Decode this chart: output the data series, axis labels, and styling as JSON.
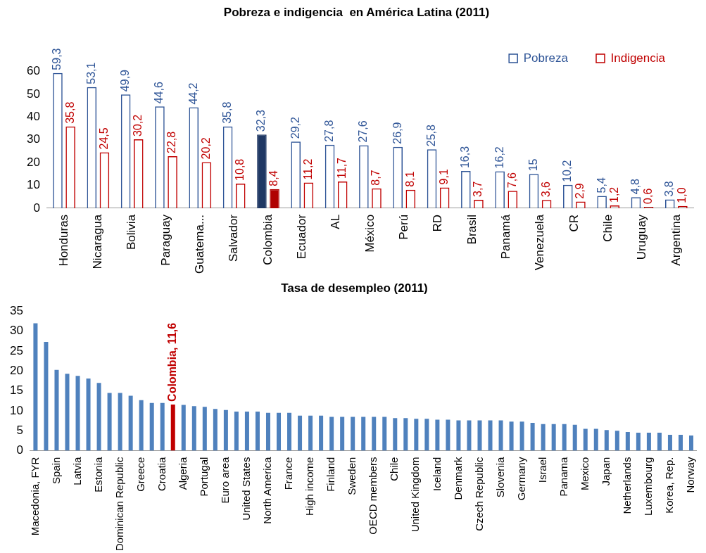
{
  "chart_data": [
    {
      "type": "bar",
      "title": "Pobreza e indigencia  en América Latina (2011)",
      "categories": [
        "Honduras",
        "Nicaragua",
        "Bolivia",
        "Paraguay",
        "Guatema...",
        "Salvador",
        "Colombia",
        "Ecuador",
        "AL",
        "México",
        "Perú",
        "RD",
        "Brasil",
        "Panamá",
        "Venezuela",
        "CR",
        "Chile",
        "Uruguay",
        "Argentina"
      ],
      "series": [
        {
          "name": "Pobreza",
          "color": "#2f5597",
          "colors": [
            "#2f5597",
            "#2f5597",
            "#2f5597",
            "#2f5597",
            "#2f5597",
            "#2f5597",
            "#1f3864",
            "#2f5597",
            "#2f5597",
            "#2f5597",
            "#2f5597",
            "#2f5597",
            "#2f5597",
            "#2f5597",
            "#2f5597",
            "#2f5597",
            "#2f5597",
            "#2f5597",
            "#2f5597"
          ],
          "values": [
            59.3,
            53.1,
            49.9,
            44.6,
            44.2,
            35.8,
            32.3,
            29.2,
            27.8,
            27.6,
            26.9,
            25.8,
            16.3,
            16.2,
            15,
            10.2,
            5.4,
            4.8,
            3.8
          ],
          "value_labels": [
            "59,3",
            "53,1",
            "49,9",
            "44,6",
            "44,2",
            "35,8",
            "32,3",
            "29,2",
            "27,8",
            "27,6",
            "26,9",
            "25,8",
            "16,3",
            "16,2",
            "15",
            "10,2",
            "5,4",
            "4,8",
            "3,8"
          ]
        },
        {
          "name": "Indigencia",
          "color": "#c00000",
          "colors": [
            "#c00000",
            "#c00000",
            "#c00000",
            "#c00000",
            "#c00000",
            "#c00000",
            "#b00000",
            "#c00000",
            "#c00000",
            "#c00000",
            "#c00000",
            "#c00000",
            "#c00000",
            "#c00000",
            "#c00000",
            "#c00000",
            "#c00000",
            "#c00000",
            "#c00000"
          ],
          "values": [
            35.8,
            24.5,
            30.2,
            22.8,
            20.2,
            10.8,
            8.4,
            11.2,
            11.7,
            8.7,
            8.1,
            9.1,
            3.7,
            7.6,
            3.6,
            2.9,
            1.2,
            0.6,
            1.0
          ],
          "value_labels": [
            "35,8",
            "24,5",
            "30,2",
            "22,8",
            "20,2",
            "10,8",
            "8,4",
            "11,2",
            "11,7",
            "8,7",
            "8,1",
            "9,1",
            "3,7",
            "7,6",
            "3,6",
            "2,9",
            "1,2",
            "0,6",
            "1,0"
          ]
        }
      ],
      "ylim": [
        0,
        60
      ],
      "yticks": [
        0,
        10,
        20,
        30,
        40,
        50,
        60
      ],
      "grid": false,
      "legend": "top right"
    },
    {
      "type": "bar",
      "title": "Tasa de desempleo (2011)",
      "categories": [
        "Macedonia, FYR",
        null,
        "Spain",
        null,
        "Latvia",
        null,
        "Estonia",
        null,
        "Dominican Republic",
        null,
        "Greece",
        null,
        "Croatia",
        null,
        "Algeria",
        null,
        "Portugal",
        null,
        "Euro area",
        null,
        "United States",
        null,
        "North America",
        null,
        "France",
        null,
        "High income",
        null,
        "Finland",
        null,
        "Sweden",
        null,
        "OECD members",
        null,
        "Chile",
        null,
        "United Kingdom",
        null,
        "Iceland",
        null,
        "Denmark",
        null,
        "Czech Republic",
        null,
        "Slovenia",
        null,
        "Germany",
        null,
        "Israel",
        null,
        "Panama",
        null,
        "Mexico",
        null,
        "Japan",
        null,
        "Netherlands",
        null,
        "Luxembourg",
        null,
        "Korea, Rep.",
        null,
        "Norway"
      ],
      "values": [
        32.0,
        27.3,
        20.3,
        19.3,
        18.8,
        18.1,
        17.0,
        14.5,
        14.5,
        13.8,
        12.7,
        12.0,
        12.0,
        11.6,
        11.5,
        11.2,
        11.0,
        10.5,
        10.2,
        9.8,
        9.8,
        9.8,
        9.5,
        9.5,
        9.5,
        8.8,
        8.8,
        8.8,
        8.5,
        8.5,
        8.5,
        8.5,
        8.5,
        8.5,
        8.2,
        8.2,
        8.0,
        8.0,
        7.8,
        7.8,
        7.6,
        7.6,
        7.6,
        7.6,
        7.6,
        7.3,
        7.3,
        7.0,
        6.7,
        6.7,
        6.7,
        6.5,
        5.5,
        5.5,
        5.2,
        5.0,
        4.7,
        4.5,
        4.5,
        4.5,
        4.0,
        4.0,
        3.8
      ],
      "colors": [
        "#4f81bd",
        "#4f81bd",
        "#4f81bd",
        "#4f81bd",
        "#4f81bd",
        "#4f81bd",
        "#4f81bd",
        "#4f81bd",
        "#4f81bd",
        "#4f81bd",
        "#4f81bd",
        "#4f81bd",
        "#4f81bd",
        "#c00000",
        "#4f81bd",
        "#4f81bd",
        "#4f81bd",
        "#4f81bd",
        "#4f81bd",
        "#4f81bd",
        "#4f81bd",
        "#4f81bd",
        "#4f81bd",
        "#4f81bd",
        "#4f81bd",
        "#4f81bd",
        "#4f81bd",
        "#4f81bd",
        "#4f81bd",
        "#4f81bd",
        "#4f81bd",
        "#4f81bd",
        "#4f81bd",
        "#4f81bd",
        "#4f81bd",
        "#4f81bd",
        "#4f81bd",
        "#4f81bd",
        "#4f81bd",
        "#4f81bd",
        "#4f81bd",
        "#4f81bd",
        "#4f81bd",
        "#4f81bd",
        "#4f81bd",
        "#4f81bd",
        "#4f81bd",
        "#4f81bd",
        "#4f81bd",
        "#4f81bd",
        "#4f81bd",
        "#4f81bd",
        "#4f81bd",
        "#4f81bd",
        "#4f81bd",
        "#4f81bd",
        "#4f81bd",
        "#4f81bd",
        "#4f81bd",
        "#4f81bd",
        "#4f81bd",
        "#4f81bd",
        "#4f81bd"
      ],
      "value_labels": [
        null,
        null,
        null,
        null,
        null,
        null,
        null,
        null,
        null,
        null,
        null,
        null,
        null,
        "Colombia, 11,6",
        null,
        null,
        null,
        null,
        null,
        null,
        null,
        null,
        null,
        null,
        null,
        null,
        null,
        null,
        null,
        null,
        null,
        null,
        null,
        null,
        null,
        null,
        null,
        null,
        null,
        null,
        null,
        null,
        null,
        null,
        null,
        null,
        null,
        null,
        null,
        null,
        null,
        null,
        null,
        null,
        null,
        null,
        null,
        null,
        null,
        null,
        null,
        null,
        null
      ],
      "ylim": [
        0,
        35
      ],
      "yticks": [
        0,
        5,
        10,
        15,
        20,
        25,
        30,
        35
      ],
      "grid": false,
      "legend": false
    }
  ]
}
